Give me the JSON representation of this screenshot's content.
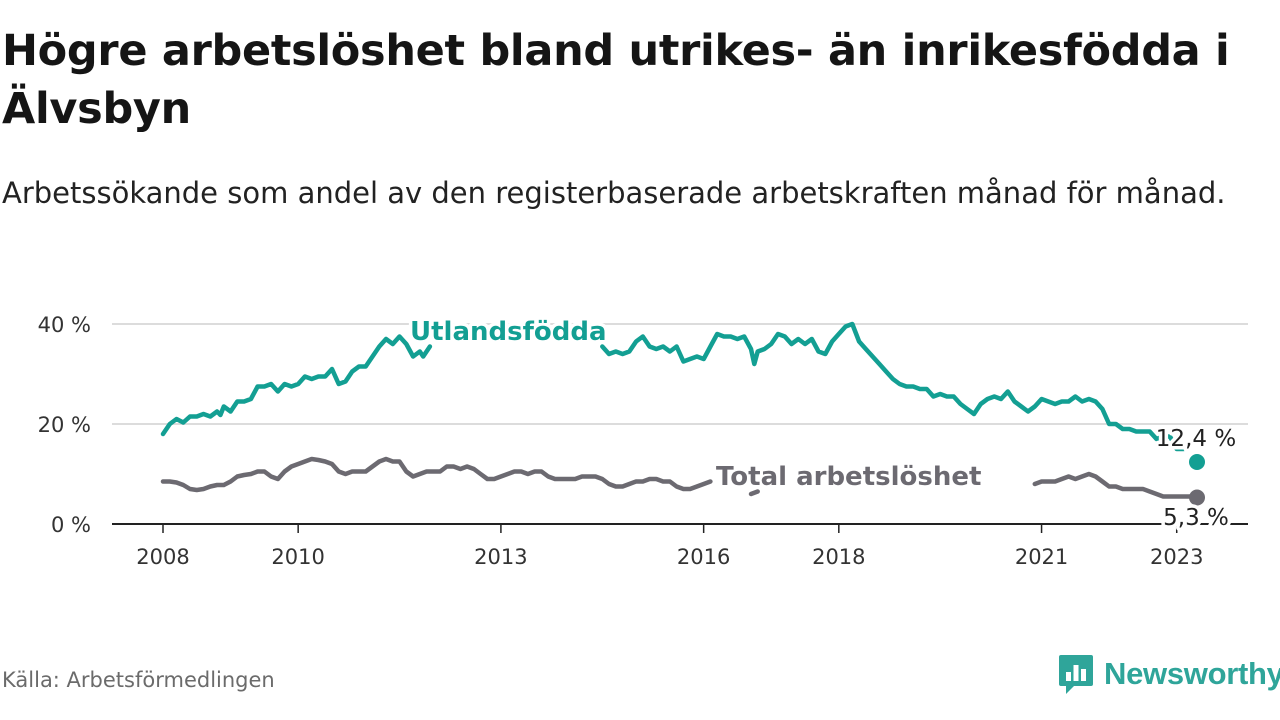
{
  "title": "Högre arbetslöshet bland utrikes- än inrikesfödda i Älvsbyn",
  "subtitle": "Arbetssökande som andel av den registerbaserade arbetskraften månad för månad.",
  "source": "Källa: Arbetsförmedlingen",
  "brand": {
    "name": "Newsworthy",
    "icon": "newsworthy-logo-icon"
  },
  "colors": {
    "foreign": "#139f93",
    "total": "#6c6a71",
    "grid": "#dcdcdc",
    "axis": "#222222"
  },
  "chart_data": {
    "type": "line",
    "title": "Högre arbetslöshet bland utrikes- än inrikesfödda i Älvsbyn",
    "xlabel": "",
    "ylabel": "",
    "xlim": [
      2008,
      2023.5
    ],
    "ylim": [
      0,
      42
    ],
    "y_ticks": [
      0,
      20,
      40
    ],
    "y_tick_labels": [
      "0 %",
      "20 %",
      "40 %"
    ],
    "x_ticks": [
      2008,
      2010,
      2013,
      2016,
      2018,
      2021,
      2023
    ],
    "x_tick_labels": [
      "2008",
      "2010",
      "2013",
      "2016",
      "2018",
      "2021",
      "2023"
    ],
    "grid": true,
    "series": [
      {
        "name": "Utlandsfödda",
        "end_label": "12,4 %",
        "points": [
          [
            2008.0,
            18.0
          ],
          [
            2008.1,
            20.0
          ],
          [
            2008.2,
            21.0
          ],
          [
            2008.3,
            20.3
          ],
          [
            2008.4,
            21.5
          ],
          [
            2008.5,
            21.5
          ],
          [
            2008.6,
            22.0
          ],
          [
            2008.7,
            21.5
          ],
          [
            2008.8,
            22.5
          ],
          [
            2008.85,
            21.8
          ],
          [
            2008.9,
            23.5
          ],
          [
            2009.0,
            22.5
          ],
          [
            2009.1,
            24.5
          ],
          [
            2009.2,
            24.5
          ],
          [
            2009.3,
            25.0
          ],
          [
            2009.4,
            27.5
          ],
          [
            2009.5,
            27.5
          ],
          [
            2009.6,
            28.0
          ],
          [
            2009.7,
            26.5
          ],
          [
            2009.8,
            28.0
          ],
          [
            2009.9,
            27.5
          ],
          [
            2010.0,
            28.0
          ],
          [
            2010.1,
            29.5
          ],
          [
            2010.2,
            29.0
          ],
          [
            2010.3,
            29.5
          ],
          [
            2010.4,
            29.5
          ],
          [
            2010.5,
            31.0
          ],
          [
            2010.6,
            28.0
          ],
          [
            2010.7,
            28.5
          ],
          [
            2010.8,
            30.5
          ],
          [
            2010.9,
            31.5
          ],
          [
            2011.0,
            31.5
          ],
          [
            2011.1,
            33.5
          ],
          [
            2011.2,
            35.5
          ],
          [
            2011.3,
            37.0
          ],
          [
            2011.4,
            36.0
          ],
          [
            2011.5,
            37.5
          ],
          [
            2011.6,
            36.0
          ],
          [
            2011.7,
            33.5
          ],
          [
            2011.8,
            34.5
          ],
          [
            2011.85,
            33.5
          ],
          [
            2011.95,
            35.5
          ],
          [
            2014.5,
            35.5
          ],
          [
            2014.6,
            34.0
          ],
          [
            2014.7,
            34.5
          ],
          [
            2014.8,
            34.0
          ],
          [
            2014.9,
            34.5
          ],
          [
            2015.0,
            36.5
          ],
          [
            2015.1,
            37.5
          ],
          [
            2015.2,
            35.5
          ],
          [
            2015.3,
            35.0
          ],
          [
            2015.4,
            35.5
          ],
          [
            2015.5,
            34.5
          ],
          [
            2015.6,
            35.5
          ],
          [
            2015.7,
            32.5
          ],
          [
            2015.8,
            33.0
          ],
          [
            2015.9,
            33.5
          ],
          [
            2016.0,
            33.0
          ],
          [
            2016.1,
            35.5
          ],
          [
            2016.2,
            38.0
          ],
          [
            2016.3,
            37.5
          ],
          [
            2016.4,
            37.5
          ],
          [
            2016.5,
            37.0
          ],
          [
            2016.6,
            37.5
          ],
          [
            2016.7,
            35.0
          ],
          [
            2016.75,
            32.0
          ],
          [
            2016.8,
            34.5
          ],
          [
            2016.9,
            35.0
          ],
          [
            2017.0,
            36.0
          ],
          [
            2017.1,
            38.0
          ],
          [
            2017.2,
            37.5
          ],
          [
            2017.3,
            36.0
          ],
          [
            2017.4,
            37.0
          ],
          [
            2017.5,
            36.0
          ],
          [
            2017.6,
            37.0
          ],
          [
            2017.7,
            34.5
          ],
          [
            2017.8,
            34.0
          ],
          [
            2017.9,
            36.5
          ],
          [
            2018.0,
            38.0
          ],
          [
            2018.1,
            39.5
          ],
          [
            2018.2,
            40.0
          ],
          [
            2018.3,
            36.5
          ],
          [
            2018.4,
            35.0
          ],
          [
            2018.5,
            33.5
          ],
          [
            2018.6,
            32.0
          ],
          [
            2018.7,
            30.5
          ],
          [
            2018.8,
            29.0
          ],
          [
            2018.9,
            28.0
          ],
          [
            2019.0,
            27.5
          ],
          [
            2019.1,
            27.5
          ],
          [
            2019.2,
            27.0
          ],
          [
            2019.3,
            27.0
          ],
          [
            2019.4,
            25.5
          ],
          [
            2019.5,
            26.0
          ],
          [
            2019.6,
            25.5
          ],
          [
            2019.7,
            25.5
          ],
          [
            2019.8,
            24.0
          ],
          [
            2019.9,
            23.0
          ],
          [
            2020.0,
            22.0
          ],
          [
            2020.1,
            24.0
          ],
          [
            2020.2,
            25.0
          ],
          [
            2020.3,
            25.5
          ],
          [
            2020.4,
            25.0
          ],
          [
            2020.5,
            26.5
          ],
          [
            2020.6,
            24.5
          ],
          [
            2020.7,
            23.5
          ],
          [
            2020.8,
            22.5
          ],
          [
            2020.9,
            23.5
          ],
          [
            2021.0,
            25.0
          ],
          [
            2021.1,
            24.5
          ],
          [
            2021.2,
            24.0
          ],
          [
            2021.3,
            24.5
          ],
          [
            2021.4,
            24.5
          ],
          [
            2021.5,
            25.5
          ],
          [
            2021.6,
            24.5
          ],
          [
            2021.7,
            25.0
          ],
          [
            2021.8,
            24.5
          ],
          [
            2021.9,
            23.0
          ],
          [
            2022.0,
            20.0
          ],
          [
            2022.1,
            20.0
          ],
          [
            2022.2,
            19.0
          ],
          [
            2022.3,
            19.0
          ],
          [
            2022.4,
            18.5
          ],
          [
            2022.5,
            18.5
          ],
          [
            2022.6,
            18.5
          ],
          [
            2022.7,
            17.0
          ],
          [
            2022.8,
            17.5
          ],
          [
            2022.9,
            17.5
          ],
          [
            2023.0,
            15.0
          ],
          [
            2023.1,
            15.0
          ]
        ],
        "last": [
          2023.3,
          12.4
        ]
      },
      {
        "name": "Total arbetslöshet",
        "end_label": "5,3 %",
        "points": [
          [
            2008.0,
            8.5
          ],
          [
            2008.1,
            8.5
          ],
          [
            2008.2,
            8.3
          ],
          [
            2008.3,
            7.8
          ],
          [
            2008.4,
            7.0
          ],
          [
            2008.5,
            6.8
          ],
          [
            2008.6,
            7.0
          ],
          [
            2008.7,
            7.5
          ],
          [
            2008.8,
            7.8
          ],
          [
            2008.9,
            7.8
          ],
          [
            2009.0,
            8.5
          ],
          [
            2009.1,
            9.5
          ],
          [
            2009.2,
            9.8
          ],
          [
            2009.3,
            10.0
          ],
          [
            2009.4,
            10.5
          ],
          [
            2009.5,
            10.5
          ],
          [
            2009.6,
            9.5
          ],
          [
            2009.7,
            9.0
          ],
          [
            2009.8,
            10.5
          ],
          [
            2009.9,
            11.5
          ],
          [
            2010.0,
            12.0
          ],
          [
            2010.1,
            12.5
          ],
          [
            2010.2,
            13.0
          ],
          [
            2010.3,
            12.8
          ],
          [
            2010.4,
            12.5
          ],
          [
            2010.5,
            12.0
          ],
          [
            2010.6,
            10.5
          ],
          [
            2010.7,
            10.0
          ],
          [
            2010.8,
            10.5
          ],
          [
            2010.9,
            10.5
          ],
          [
            2011.0,
            10.5
          ],
          [
            2011.1,
            11.5
          ],
          [
            2011.2,
            12.5
          ],
          [
            2011.3,
            13.0
          ],
          [
            2011.4,
            12.5
          ],
          [
            2011.5,
            12.5
          ],
          [
            2011.6,
            10.5
          ],
          [
            2011.7,
            9.5
          ],
          [
            2011.8,
            10.0
          ],
          [
            2011.9,
            10.5
          ],
          [
            2012.0,
            10.5
          ],
          [
            2012.1,
            10.5
          ],
          [
            2012.2,
            11.5
          ],
          [
            2012.3,
            11.5
          ],
          [
            2012.4,
            11.0
          ],
          [
            2012.5,
            11.5
          ],
          [
            2012.6,
            11.0
          ],
          [
            2012.7,
            10.0
          ],
          [
            2012.8,
            9.0
          ],
          [
            2012.9,
            9.0
          ],
          [
            2013.0,
            9.5
          ],
          [
            2013.1,
            10.0
          ],
          [
            2013.2,
            10.5
          ],
          [
            2013.3,
            10.5
          ],
          [
            2013.4,
            10.0
          ],
          [
            2013.5,
            10.5
          ],
          [
            2013.6,
            10.5
          ],
          [
            2013.7,
            9.5
          ],
          [
            2013.8,
            9.0
          ],
          [
            2013.9,
            9.0
          ],
          [
            2014.0,
            9.0
          ],
          [
            2014.1,
            9.0
          ],
          [
            2014.2,
            9.5
          ],
          [
            2014.3,
            9.5
          ],
          [
            2014.4,
            9.5
          ],
          [
            2014.5,
            9.0
          ],
          [
            2014.6,
            8.0
          ],
          [
            2014.7,
            7.5
          ],
          [
            2014.8,
            7.5
          ],
          [
            2014.9,
            8.0
          ],
          [
            2015.0,
            8.5
          ],
          [
            2015.1,
            8.5
          ],
          [
            2015.2,
            9.0
          ],
          [
            2015.3,
            9.0
          ],
          [
            2015.4,
            8.5
          ],
          [
            2015.5,
            8.5
          ],
          [
            2015.6,
            7.5
          ],
          [
            2015.7,
            7.0
          ],
          [
            2015.8,
            7.0
          ],
          [
            2015.9,
            7.5
          ],
          [
            2016.0,
            8.0
          ],
          [
            2016.1,
            8.5
          ]
        ],
        "points_b": [
          [
            2016.7,
            6.0
          ],
          [
            2016.8,
            6.5
          ]
        ],
        "points_c": [
          [
            2020.9,
            8.0
          ],
          [
            2021.0,
            8.5
          ],
          [
            2021.1,
            8.5
          ],
          [
            2021.2,
            8.5
          ],
          [
            2021.3,
            9.0
          ],
          [
            2021.4,
            9.5
          ],
          [
            2021.5,
            9.0
          ],
          [
            2021.6,
            9.5
          ],
          [
            2021.7,
            10.0
          ],
          [
            2021.8,
            9.5
          ],
          [
            2021.9,
            8.5
          ],
          [
            2022.0,
            7.5
          ],
          [
            2022.1,
            7.5
          ],
          [
            2022.2,
            7.0
          ],
          [
            2022.3,
            7.0
          ],
          [
            2022.4,
            7.0
          ],
          [
            2022.5,
            7.0
          ],
          [
            2022.6,
            6.5
          ],
          [
            2022.7,
            6.0
          ],
          [
            2022.8,
            5.5
          ],
          [
            2022.9,
            5.5
          ],
          [
            2023.0,
            5.5
          ],
          [
            2023.1,
            5.5
          ],
          [
            2023.2,
            5.5
          ]
        ],
        "last": [
          2023.3,
          5.3
        ]
      }
    ]
  }
}
